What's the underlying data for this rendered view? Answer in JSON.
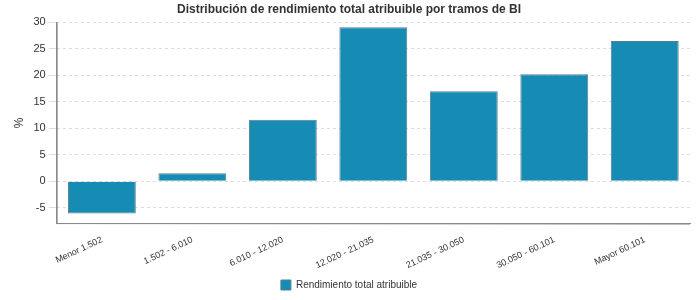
{
  "chart_data": {
    "type": "bar",
    "title": "Distribución de rendimiento total atribuible por tramos de BI",
    "y_label": "%",
    "categories": [
      "Menor 1.502",
      "1.502 - 6.010",
      "6.010 - 12.020",
      "12.020 - 21.035",
      "21.035 - 30.050",
      "30.050 - 60.101",
      "Mayor 60.101"
    ],
    "series": [
      {
        "name": "Rendimiento total atribuible",
        "color": "#168bb4",
        "values": [
          -6.1,
          1.5,
          11.6,
          29.1,
          17.0,
          20.2,
          26.5
        ]
      }
    ],
    "ylim": [
      -8,
      30
    ],
    "yticks": [
      -5,
      0,
      5,
      10,
      15,
      20,
      25,
      30
    ],
    "grid": true,
    "legend": "bottom"
  }
}
